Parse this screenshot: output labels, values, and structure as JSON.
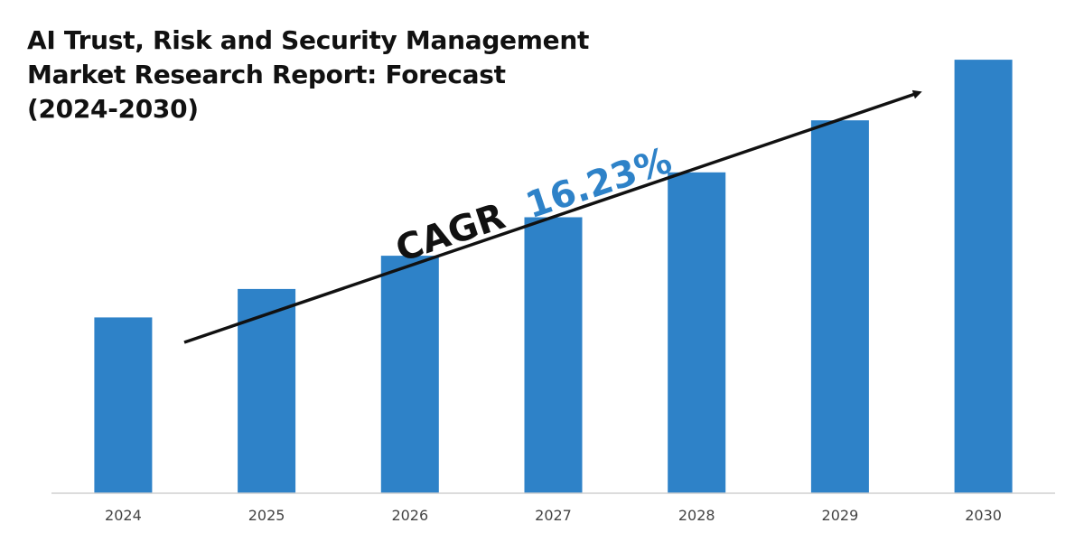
{
  "chart_data": {
    "type": "bar",
    "title_lines": [
      "AI Trust, Risk and Security Management",
      "Market Research Report: Forecast",
      "(2024-2030)"
    ],
    "categories": [
      "2024",
      "2025",
      "2026",
      "2027",
      "2028",
      "2029",
      "2030"
    ],
    "values": [
      1.0,
      1.162,
      1.351,
      1.57,
      1.825,
      2.121,
      2.466
    ],
    "ylim": [
      0,
      2.6
    ],
    "grid": false,
    "legend": "none",
    "annotation": {
      "label": "CAGR",
      "value": "16.23%"
    },
    "colors": {
      "bar": "#2e82c8",
      "cagr_label": "#111111",
      "cagr_value": "#2e82c8",
      "arrow": "#111111",
      "axis": "#d0d0d0"
    }
  }
}
